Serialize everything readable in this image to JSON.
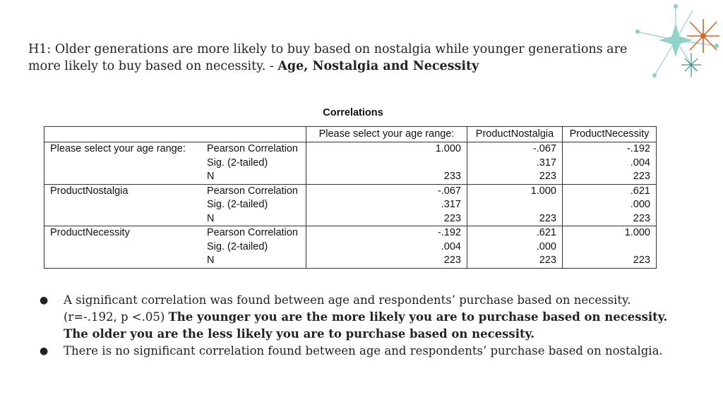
{
  "heading": {
    "text": "H1: Older generations are more likely to buy based on nostalgia while younger generations are more likely to buy based on necessity.  - ",
    "bold": "Age, Nostalgia and Necessity"
  },
  "table": {
    "caption": "Correlations",
    "headers": [
      "Please select your age range:",
      "ProductNostalgia",
      "ProductNecessity"
    ],
    "groups": [
      {
        "variable": "Please select your age range:",
        "rows": [
          {
            "stat": "Pearson Correlation",
            "values": [
              "1.000",
              "-.067",
              "-.192"
            ]
          },
          {
            "stat": "Sig. (2-tailed)",
            "values": [
              "",
              ".317",
              ".004"
            ]
          },
          {
            "stat": "N",
            "values": [
              "233",
              "223",
              "223"
            ]
          }
        ]
      },
      {
        "variable": "ProductNostalgia",
        "rows": [
          {
            "stat": "Pearson Correlation",
            "values": [
              "-.067",
              "1.000",
              ".621"
            ]
          },
          {
            "stat": "Sig. (2-tailed)",
            "values": [
              ".317",
              "",
              ".000"
            ]
          },
          {
            "stat": "N",
            "values": [
              "223",
              "223",
              "223"
            ]
          }
        ]
      },
      {
        "variable": "ProductNecessity",
        "rows": [
          {
            "stat": "Pearson Correlation",
            "values": [
              "-.192",
              ".621",
              "1.000"
            ]
          },
          {
            "stat": "Sig. (2-tailed)",
            "values": [
              ".004",
              ".000",
              ""
            ]
          },
          {
            "stat": "N",
            "values": [
              "223",
              "223",
              "223"
            ]
          }
        ]
      }
    ]
  },
  "bullets": [
    {
      "symbol": "●",
      "text": "A significant correlation was found between age and respondents’ purchase based on necessity. (r=-.192, p <.05) ",
      "bold": "The younger you are the more likely you are to purchase based on necessity. The older you are the less likely you are to purchase based on necessity."
    },
    {
      "symbol": "●",
      "text": "There is no significant correlation found between age and respondents’ purchase based on nostalgia.",
      "bold": ""
    }
  ],
  "decoration": {
    "icon": "starburst-icon",
    "colors": {
      "teal": "#8fd3c8",
      "orange": "#d4622a",
      "dark_teal": "#3e8f8a"
    }
  }
}
